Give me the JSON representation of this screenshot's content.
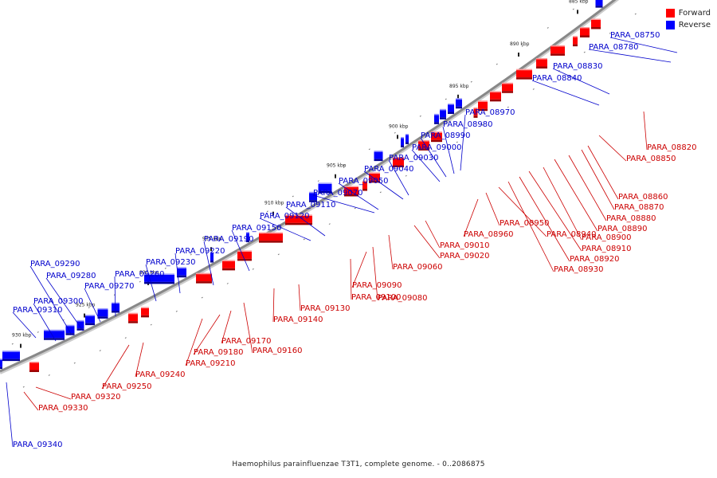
{
  "legend": {
    "forward": {
      "label": "Forward",
      "color": "#ff0000"
    },
    "reverse": {
      "label": "Reverse",
      "color": "#0000ff"
    }
  },
  "caption": "Haemophilus parainfluenzae T3T1, complete genome. - 0..2086875",
  "colors": {
    "axis": "#888888",
    "forward_label": "#cc0000",
    "reverse_label": "#0000cc"
  },
  "scale_ticks": [
    "875 kbp",
    "880 kbp",
    "885 kbp",
    "890 kbp",
    "895 kbp",
    "900 kbp",
    "905 kbp",
    "910 kbp",
    "915 kbp",
    "920 kbp",
    "925 kbp",
    "930 kbp"
  ],
  "reverse_genes": [
    "PARA_08750",
    "PARA_08780",
    "PARA_08830",
    "PARA_08840",
    "PARA_08970",
    "PARA_08980",
    "PARA_08990",
    "PARA_09000",
    "PARA_09030",
    "PARA_09040",
    "PARA_09050",
    "PARA_09070",
    "PARA_09110",
    "PARA_09120",
    "PARA_09150",
    "PARA_09190",
    "PARA_09220",
    "PARA_09230",
    "PARA_09260",
    "PARA_09270",
    "PARA_09280",
    "PARA_09290",
    "PARA_09300",
    "PARA_09310",
    "PARA_09340"
  ],
  "forward_genes": [
    "PARA_08820",
    "PARA_08850",
    "PARA_08860",
    "PARA_08870",
    "PARA_08880",
    "PARA_08890",
    "PARA_08900",
    "PARA_08910",
    "PARA_08920",
    "PARA_08930",
    "PARA_08940",
    "PARA_08950",
    "PARA_08960",
    "PARA_09010",
    "PARA_09020",
    "PARA_09060",
    "PARA_09080",
    "PARA_09090",
    "PARA_09100",
    "PARA_09130",
    "PARA_09140",
    "PARA_09160",
    "PARA_09170",
    "PARA_09180",
    "PARA_09210",
    "PARA_09240",
    "PARA_09250",
    "PARA_09320",
    "PARA_09330"
  ]
}
